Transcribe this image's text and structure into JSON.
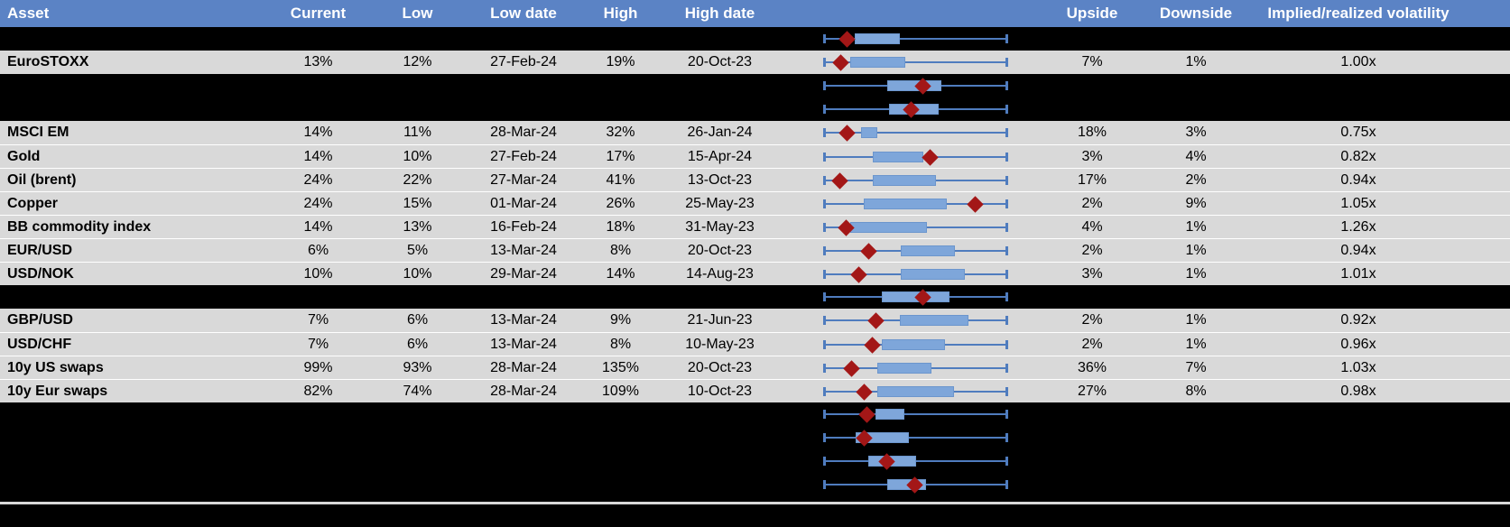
{
  "colors": {
    "header_bg": "#5b83c5",
    "header_text": "#ffffff",
    "row_bg": "#d9d9d9",
    "redacted_row_bg": "#000000",
    "text": "#000000",
    "whisker_blue": "#4f7cbe",
    "box_fill_blue": "#7ea6da",
    "diamond_red": "#a31717",
    "row_divider": "#ffffff"
  },
  "header": {
    "columns": [
      {
        "key": "asset",
        "label": "Asset"
      },
      {
        "key": "current",
        "label": "Current"
      },
      {
        "key": "low",
        "label": "Low"
      },
      {
        "key": "lowdate",
        "label": "Low date"
      },
      {
        "key": "high",
        "label": "High"
      },
      {
        "key": "highdate",
        "label": "High date"
      },
      {
        "key": "chart",
        "label": ""
      },
      {
        "key": "upside",
        "label": "Upside"
      },
      {
        "key": "downside",
        "label": "Downside"
      },
      {
        "key": "impl",
        "label": "Implied/realized volatility"
      }
    ]
  },
  "chart_data": {
    "type": "table",
    "note": "Each row embeds a normalized 1-year-range box plot: whiskers span the full low-high range, blue box = middle range, red diamond = current level (positions given as 0-1 fractions of the whisker span). Rows with kind 'chart-only' are blacked-out/redacted rows where only the box plot is visible.",
    "boxplot_span_fraction": [
      0,
      1
    ],
    "rows": [
      {
        "kind": "chart-only",
        "box_lo": 0.17,
        "box_hi": 0.415,
        "marker": 0.127
      },
      {
        "kind": "data",
        "asset": "EuroSTOXX",
        "current": "13%",
        "low": "12%",
        "low_date": "27-Feb-24",
        "high": "19%",
        "high_date": "20-Oct-23",
        "upside": "7%",
        "downside": "1%",
        "impl": "1.00x",
        "box_lo": 0.146,
        "box_hi": 0.444,
        "marker": 0.096
      },
      {
        "kind": "chart-only",
        "box_lo": 0.346,
        "box_hi": 0.639,
        "marker": 0.541
      },
      {
        "kind": "chart-only",
        "box_lo": 0.356,
        "box_hi": 0.624,
        "marker": 0.478
      },
      {
        "kind": "data",
        "asset": "MSCI EM",
        "current": "14%",
        "low": "11%",
        "low_date": "28-Mar-24",
        "high": "32%",
        "high_date": "26-Jan-24",
        "upside": "18%",
        "downside": "3%",
        "impl": "0.75x",
        "box_lo": 0.205,
        "box_hi": 0.293,
        "marker": 0.127
      },
      {
        "kind": "data",
        "asset": "Gold",
        "current": "14%",
        "low": "10%",
        "low_date": "27-Feb-24",
        "high": "17%",
        "high_date": "15-Apr-24",
        "upside": "3%",
        "downside": "4%",
        "impl": "0.82x",
        "box_lo": 0.268,
        "box_hi": 0.541,
        "marker": 0.576
      },
      {
        "kind": "data",
        "asset": "Oil (brent)",
        "current": "24%",
        "low": "22%",
        "low_date": "27-Mar-24",
        "high": "41%",
        "high_date": "13-Oct-23",
        "upside": "17%",
        "downside": "2%",
        "impl": "0.94x",
        "box_lo": 0.268,
        "box_hi": 0.61,
        "marker": 0.088
      },
      {
        "kind": "data",
        "asset": "Copper",
        "current": "24%",
        "low": "15%",
        "low_date": "01-Mar-24",
        "high": "26%",
        "high_date": "25-May-23",
        "upside": "2%",
        "downside": "9%",
        "impl": "1.05x",
        "box_lo": 0.22,
        "box_hi": 0.668,
        "marker": 0.82
      },
      {
        "kind": "data",
        "asset": "BB commodity index",
        "current": "14%",
        "low": "13%",
        "low_date": "16-Feb-24",
        "high": "18%",
        "high_date": "31-May-23",
        "upside": "4%",
        "downside": "1%",
        "impl": "1.26x",
        "box_lo": 0.146,
        "box_hi": 0.561,
        "marker": 0.122
      },
      {
        "kind": "data",
        "asset": "EUR/USD",
        "current": "6%",
        "low": "5%",
        "low_date": "13-Mar-24",
        "high": "8%",
        "high_date": "20-Oct-23",
        "upside": "2%",
        "downside": "1%",
        "impl": "0.94x",
        "box_lo": 0.42,
        "box_hi": 0.712,
        "marker": 0.244
      },
      {
        "kind": "data",
        "asset": "USD/NOK",
        "current": "10%",
        "low": "10%",
        "low_date": "29-Mar-24",
        "high": "14%",
        "high_date": "14-Aug-23",
        "upside": "3%",
        "downside": "1%",
        "impl": "1.01x",
        "box_lo": 0.42,
        "box_hi": 0.766,
        "marker": 0.195
      },
      {
        "kind": "chart-only",
        "box_lo": 0.317,
        "box_hi": 0.683,
        "marker": 0.537
      },
      {
        "kind": "data",
        "asset": "GBP/USD",
        "current": "7%",
        "low": "6%",
        "low_date": "13-Mar-24",
        "high": "9%",
        "high_date": "21-Jun-23",
        "upside": "2%",
        "downside": "1%",
        "impl": "0.92x",
        "box_lo": 0.415,
        "box_hi": 0.785,
        "marker": 0.283
      },
      {
        "kind": "data",
        "asset": "USD/CHF",
        "current": "7%",
        "low": "6%",
        "low_date": "13-Mar-24",
        "high": "8%",
        "high_date": "10-May-23",
        "upside": "2%",
        "downside": "1%",
        "impl": "0.96x",
        "box_lo": 0.317,
        "box_hi": 0.659,
        "marker": 0.268
      },
      {
        "kind": "data",
        "asset": "10y US swaps",
        "current": "99%",
        "low": "93%",
        "low_date": "28-Mar-24",
        "high": "135%",
        "high_date": "20-Oct-23",
        "upside": "36%",
        "downside": "7%",
        "impl": "1.03x",
        "box_lo": 0.293,
        "box_hi": 0.585,
        "marker": 0.156
      },
      {
        "kind": "data",
        "asset": "10y Eur swaps",
        "current": "82%",
        "low": "74%",
        "low_date": "28-Mar-24",
        "high": "109%",
        "high_date": "10-Oct-23",
        "upside": "27%",
        "downside": "8%",
        "impl": "0.98x",
        "box_lo": 0.293,
        "box_hi": 0.707,
        "marker": 0.224
      },
      {
        "kind": "chart-only",
        "box_lo": 0.283,
        "box_hi": 0.439,
        "marker": 0.239
      },
      {
        "kind": "chart-only",
        "box_lo": 0.176,
        "box_hi": 0.463,
        "marker": 0.224
      },
      {
        "kind": "chart-only",
        "box_lo": 0.244,
        "box_hi": 0.502,
        "marker": 0.346
      },
      {
        "kind": "chart-only",
        "box_lo": 0.346,
        "box_hi": 0.556,
        "marker": 0.493
      }
    ]
  }
}
